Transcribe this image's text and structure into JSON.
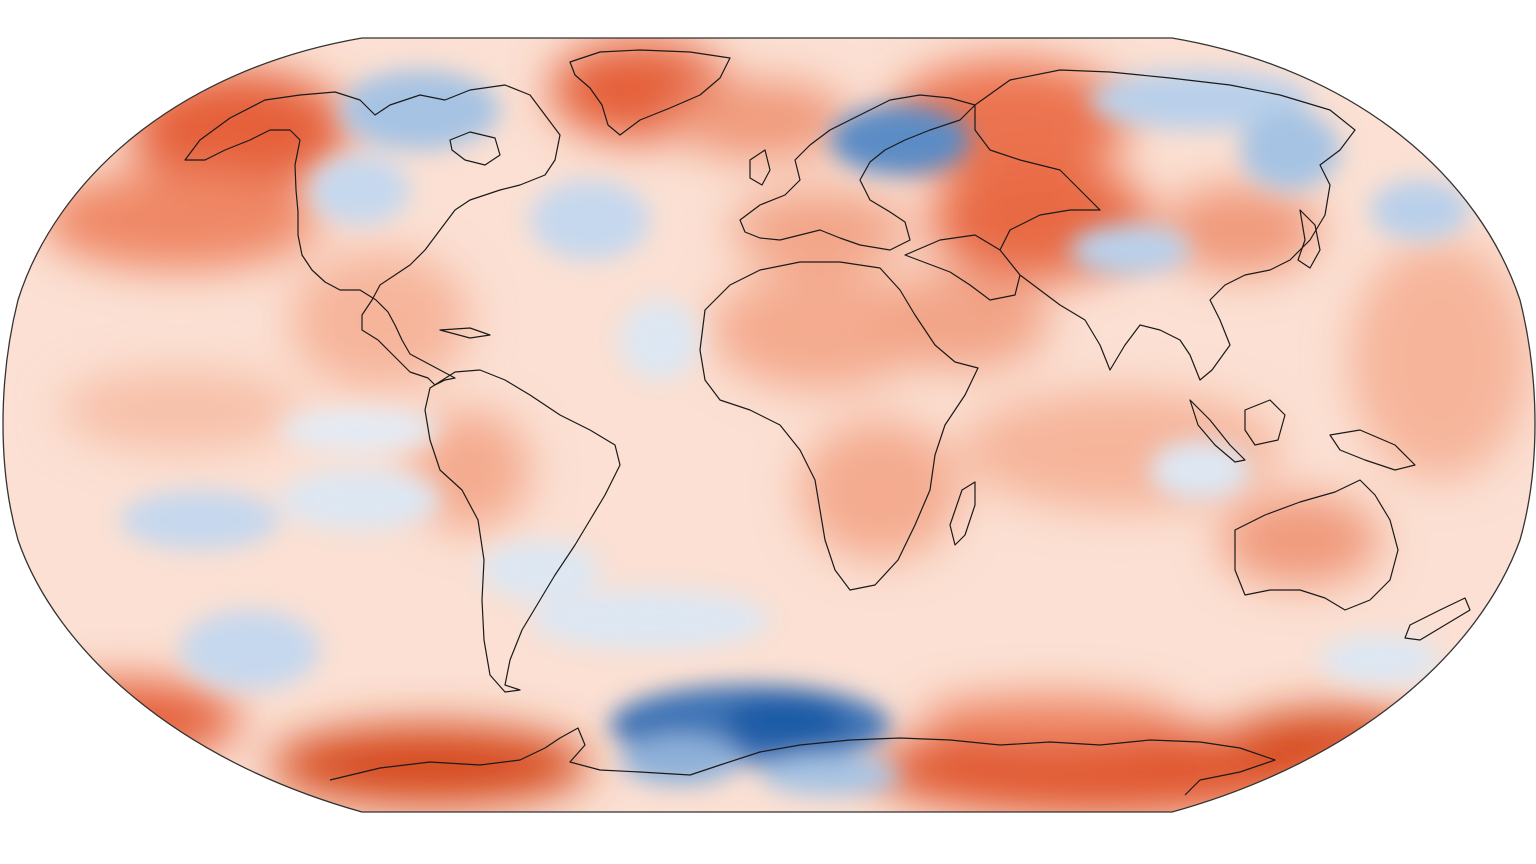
{
  "map": {
    "projection": "robinson",
    "palette": {
      "warm_strong": "#c6380a",
      "warm_mid": "#ec7350",
      "warm_light": "#f6b59b",
      "neutral": "#fbe6dc",
      "cool_light": "#d6e2f1",
      "cool_mid": "#8eb1d9",
      "cool_strong": "#1c5ba6",
      "coastline": "#1a1a1a",
      "frame": "#333333"
    },
    "anomaly_regions": {
      "warm": [
        "alaska-pacific",
        "greenland",
        "siberia",
        "central-asia",
        "western-antarctica",
        "eastern-antarctica",
        "australia",
        "north-africa"
      ],
      "cool": [
        "canadian-arctic",
        "northern-russia",
        "east-asia",
        "north-atlantic",
        "south-pacific",
        "southern-ocean"
      ]
    }
  }
}
